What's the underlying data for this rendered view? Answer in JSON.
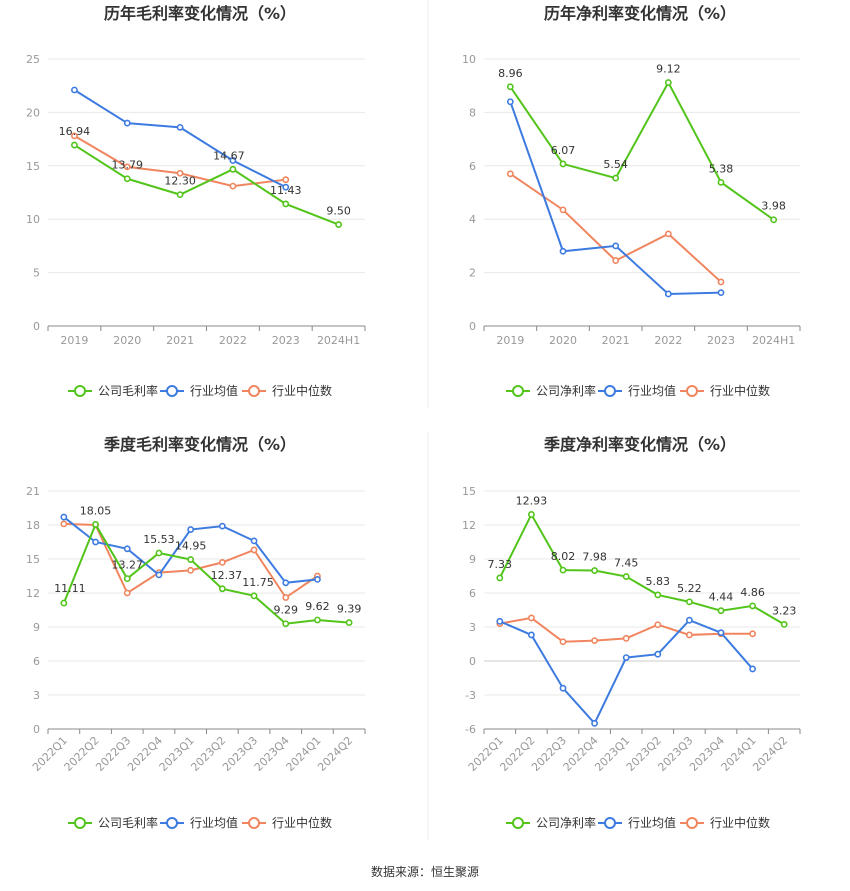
{
  "footer": {
    "source": "数据来源：恒生聚源"
  },
  "chart_data": [
    {
      "type": "line",
      "title": "历年毛利率变化情况（%）",
      "categories": [
        "2019",
        "2020",
        "2021",
        "2022",
        "2023",
        "2024H1"
      ],
      "ylim": [
        0,
        25
      ],
      "yticks": [
        0,
        5,
        10,
        15,
        20,
        25
      ],
      "grid": true,
      "legend_position": "bottom",
      "series": [
        {
          "name": "公司毛利率",
          "color": "#52c41a",
          "values": [
            16.94,
            13.79,
            12.3,
            14.67,
            11.43,
            9.5
          ],
          "labels": [
            "16.94",
            "13.79",
            "12.30",
            "14.67",
            "11.43",
            "9.50"
          ]
        },
        {
          "name": "行业均值",
          "color": "#3d7be0",
          "values": [
            22.1,
            19.0,
            18.6,
            15.5,
            13.0,
            null
          ]
        },
        {
          "name": "行业中位数",
          "color": "#f0855f",
          "values": [
            17.8,
            14.9,
            14.3,
            13.1,
            13.7,
            null
          ]
        }
      ]
    },
    {
      "type": "line",
      "title": "历年净利率变化情况（%）",
      "categories": [
        "2019",
        "2020",
        "2021",
        "2022",
        "2023",
        "2024H1"
      ],
      "ylim": [
        0,
        10
      ],
      "yticks": [
        0,
        2,
        4,
        6,
        8,
        10
      ],
      "grid": true,
      "legend_position": "bottom",
      "series": [
        {
          "name": "公司净利率",
          "color": "#52c41a",
          "values": [
            8.96,
            6.07,
            5.54,
            9.12,
            5.38,
            3.98
          ],
          "labels": [
            "8.96",
            "6.07",
            "5.54",
            "9.12",
            "5.38",
            "3.98"
          ]
        },
        {
          "name": "行业均值",
          "color": "#3d7be0",
          "values": [
            8.4,
            2.8,
            3.0,
            1.2,
            1.25,
            null
          ]
        },
        {
          "name": "行业中位数",
          "color": "#f0855f",
          "values": [
            5.7,
            4.35,
            2.45,
            3.45,
            1.65,
            null
          ]
        }
      ]
    },
    {
      "type": "line",
      "title": "季度毛利率变化情况（%）",
      "categories": [
        "2022Q1",
        "2022Q2",
        "2022Q3",
        "2022Q4",
        "2023Q1",
        "2023Q2",
        "2023Q3",
        "2023Q4",
        "2024Q1",
        "2024Q2"
      ],
      "ylim": [
        0,
        21
      ],
      "yticks": [
        0,
        3,
        6,
        9,
        12,
        15,
        18,
        21
      ],
      "grid": true,
      "legend_position": "bottom",
      "series": [
        {
          "name": "公司毛利率",
          "color": "#52c41a",
          "values": [
            11.11,
            18.05,
            13.27,
            15.53,
            14.95,
            12.37,
            11.75,
            9.29,
            9.62,
            9.39
          ],
          "labels": [
            "11.11",
            "18.05",
            "13.27",
            "15.53",
            "14.95",
            "12.37",
            "11.75",
            "9.29",
            "9.62",
            "9.39"
          ]
        },
        {
          "name": "行业均值",
          "color": "#3d7be0",
          "values": [
            18.7,
            16.5,
            15.9,
            13.6,
            17.6,
            17.9,
            16.6,
            12.9,
            13.2,
            null
          ]
        },
        {
          "name": "行业中位数",
          "color": "#f0855f",
          "values": [
            18.1,
            18.0,
            12.0,
            13.8,
            14.0,
            14.7,
            15.8,
            11.6,
            13.5,
            null
          ]
        }
      ]
    },
    {
      "type": "line",
      "title": "季度净利率变化情况（%）",
      "categories": [
        "2022Q1",
        "2022Q2",
        "2022Q3",
        "2022Q4",
        "2023Q1",
        "2023Q2",
        "2023Q3",
        "2023Q4",
        "2024Q1",
        "2024Q2"
      ],
      "ylim": [
        -6,
        15
      ],
      "yticks": [
        -6,
        -3,
        0,
        3,
        6,
        9,
        12,
        15
      ],
      "grid": true,
      "legend_position": "bottom",
      "series": [
        {
          "name": "公司净利率",
          "color": "#52c41a",
          "values": [
            7.33,
            12.93,
            8.02,
            7.98,
            7.45,
            5.83,
            5.22,
            4.44,
            4.86,
            3.23
          ],
          "labels": [
            "7.33",
            "12.93",
            "8.02",
            "7.98",
            "7.45",
            "5.83",
            "5.22",
            "4.44",
            "4.86",
            "3.23"
          ]
        },
        {
          "name": "行业均值",
          "color": "#3d7be0",
          "values": [
            3.5,
            2.3,
            -2.4,
            -5.5,
            0.3,
            0.6,
            3.6,
            2.5,
            -0.7,
            null
          ]
        },
        {
          "name": "行业中位数",
          "color": "#f0855f",
          "values": [
            3.3,
            3.8,
            1.7,
            1.8,
            2.0,
            3.2,
            2.3,
            2.4,
            2.4,
            null
          ]
        }
      ]
    }
  ]
}
